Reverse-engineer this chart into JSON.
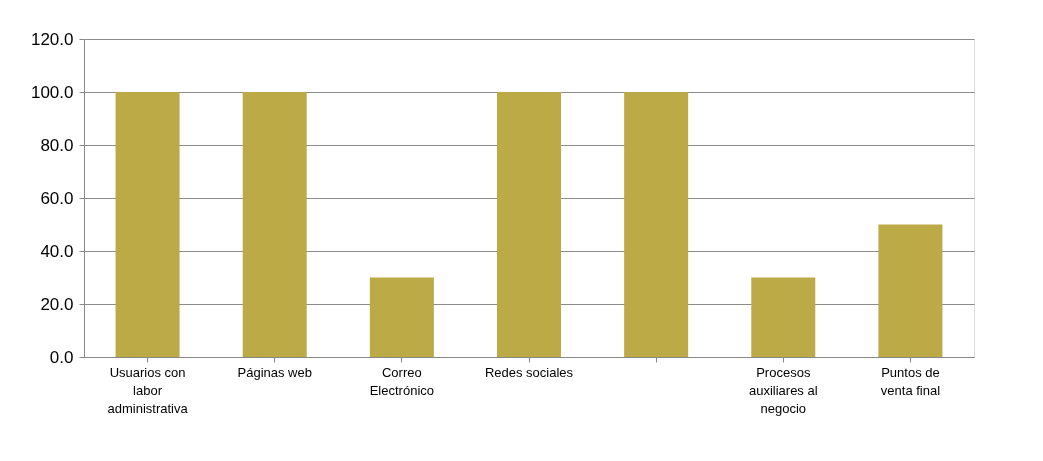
{
  "chart_data": {
    "type": "bar",
    "categories": [
      "Usuarios con labor administrativa",
      "Páginas web",
      "Correo Electrónico",
      "Redes sociales",
      null,
      "Procesos auxiliares al negocio",
      "Puntos de venta final"
    ],
    "values": [
      100,
      100,
      30,
      100,
      100,
      30,
      50
    ],
    "color": "#bcaa46",
    "ylim": [
      0,
      120
    ],
    "yticks": [
      {
        "value": 0,
        "label": "0.0"
      },
      {
        "value": 20,
        "label": "20.0"
      },
      {
        "value": 40,
        "label": "40.0"
      },
      {
        "value": 60,
        "label": "60.0"
      },
      {
        "value": 80,
        "label": "80.0"
      },
      {
        "value": 100,
        "label": "100.0"
      },
      {
        "value": 120,
        "label": "120.0"
      }
    ],
    "grid": "y"
  }
}
